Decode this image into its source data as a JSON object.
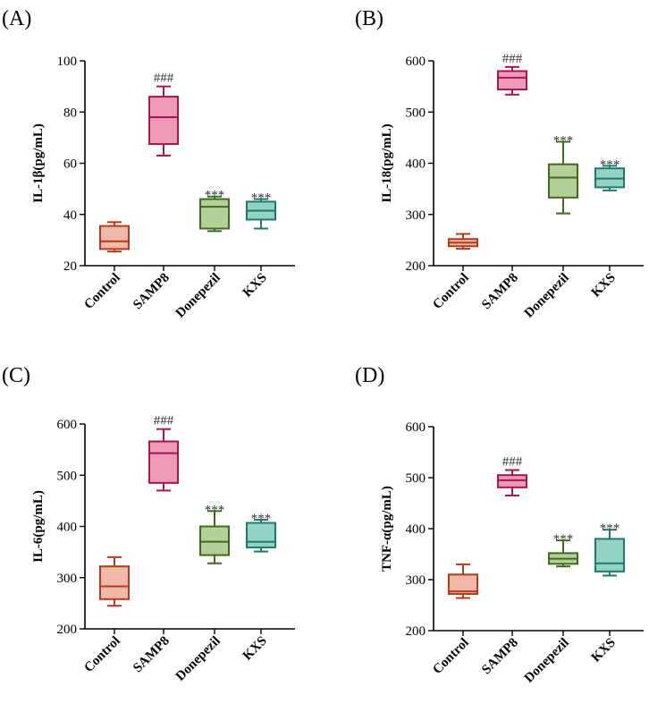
{
  "colors": {
    "control": {
      "fill": "#f0b8a8",
      "stroke": "#b33a1a"
    },
    "samp8": {
      "fill": "#ec9ab8",
      "stroke": "#a6174f"
    },
    "donepezil": {
      "fill": "#b5cf98",
      "stroke": "#3f6b1d"
    },
    "kxs": {
      "fill": "#92d3c6",
      "stroke": "#1e7a6b"
    },
    "axis": "#000000"
  },
  "chart_data": [
    {
      "type": "box",
      "panel": "(A)",
      "ylabel": "IL-1β(pg/mL)",
      "ylim": [
        20,
        100
      ],
      "yticks": [
        20,
        40,
        60,
        80,
        100
      ],
      "categories": [
        "Control",
        "SAMP8",
        "Donepezil",
        "KXS"
      ],
      "series": [
        {
          "name": "Control",
          "min": 25.5,
          "q1": 26.5,
          "median": 29.5,
          "q3": 35.5,
          "max": 37,
          "annotation": ""
        },
        {
          "name": "SAMP8",
          "min": 63,
          "q1": 67.5,
          "median": 78,
          "q3": 86,
          "max": 90,
          "annotation": "###"
        },
        {
          "name": "Donepezil",
          "min": 33.5,
          "q1": 34.5,
          "median": 43,
          "q3": 46,
          "max": 47,
          "annotation": "***"
        },
        {
          "name": "KXS",
          "min": 34.5,
          "q1": 38,
          "median": 41.5,
          "q3": 45,
          "max": 46,
          "annotation": "***"
        }
      ]
    },
    {
      "type": "box",
      "panel": "(B)",
      "ylabel": "IL-18(pg/mL)",
      "ylim": [
        200,
        600
      ],
      "yticks": [
        200,
        300,
        400,
        500,
        600
      ],
      "categories": [
        "Control",
        "SAMP8",
        "Donepezil",
        "KXS"
      ],
      "series": [
        {
          "name": "Control",
          "min": 233,
          "q1": 238,
          "median": 245,
          "q3": 252,
          "max": 262,
          "annotation": ""
        },
        {
          "name": "SAMP8",
          "min": 534,
          "q1": 544,
          "median": 567,
          "q3": 580,
          "max": 588,
          "annotation": "###"
        },
        {
          "name": "Donepezil",
          "min": 302,
          "q1": 333,
          "median": 372,
          "q3": 398,
          "max": 442,
          "annotation": "***"
        },
        {
          "name": "KXS",
          "min": 347,
          "q1": 353,
          "median": 370,
          "q3": 390,
          "max": 395,
          "annotation": "***"
        }
      ]
    },
    {
      "type": "box",
      "panel": "(C)",
      "ylabel": "IL-6(pg/mL)",
      "ylim": [
        200,
        600
      ],
      "yticks": [
        200,
        300,
        400,
        500,
        600
      ],
      "categories": [
        "Control",
        "SAMP8",
        "Donepezil",
        "KXS"
      ],
      "series": [
        {
          "name": "Control",
          "min": 245,
          "q1": 258,
          "median": 283,
          "q3": 322,
          "max": 340,
          "annotation": ""
        },
        {
          "name": "SAMP8",
          "min": 470,
          "q1": 485,
          "median": 543,
          "q3": 566,
          "max": 590,
          "annotation": "###"
        },
        {
          "name": "Donepezil",
          "min": 328,
          "q1": 344,
          "median": 370,
          "q3": 400,
          "max": 430,
          "annotation": "***"
        },
        {
          "name": "KXS",
          "min": 351,
          "q1": 359,
          "median": 370,
          "q3": 407,
          "max": 413,
          "annotation": "***"
        }
      ]
    },
    {
      "type": "box",
      "panel": "(D)",
      "ylabel": "TNF-α(pg/mL)",
      "ylim": [
        200,
        600
      ],
      "yticks": [
        200,
        300,
        400,
        500,
        600
      ],
      "categories": [
        "Control",
        "SAMP8",
        "Donepezil",
        "KXS"
      ],
      "series": [
        {
          "name": "Control",
          "min": 264,
          "q1": 272,
          "median": 277,
          "q3": 310,
          "max": 330,
          "annotation": ""
        },
        {
          "name": "SAMP8",
          "min": 465,
          "q1": 481,
          "median": 495,
          "q3": 505,
          "max": 515,
          "annotation": "###"
        },
        {
          "name": "Donepezil",
          "min": 326,
          "q1": 331,
          "median": 341,
          "q3": 352,
          "max": 377,
          "annotation": "***"
        },
        {
          "name": "KXS",
          "min": 308,
          "q1": 316,
          "median": 332,
          "q3": 380,
          "max": 398,
          "annotation": "***"
        }
      ]
    }
  ]
}
